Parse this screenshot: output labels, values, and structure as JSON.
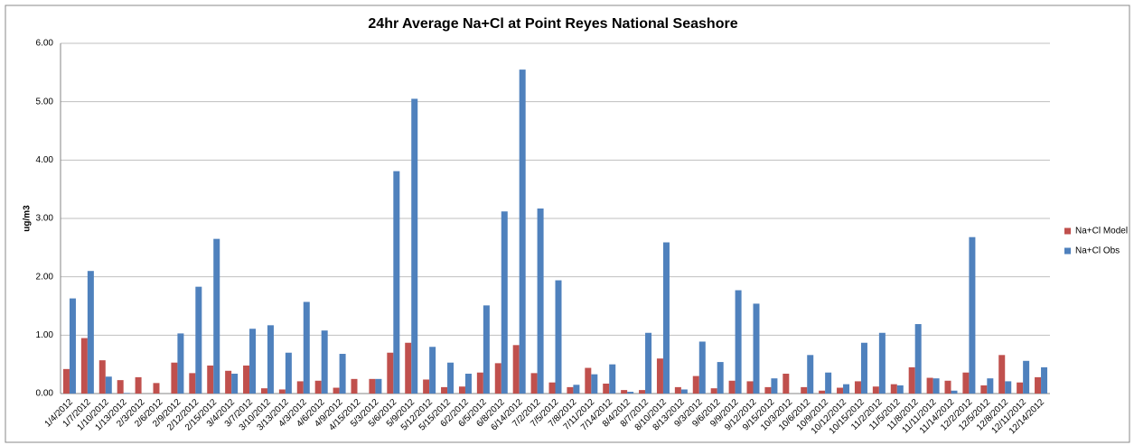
{
  "chart_data": {
    "type": "bar",
    "title": "24hr Average Na+Cl at Point Reyes National Seashore",
    "y_label": "ug/m3",
    "categories": [
      "1/4/2012",
      "1/7/2012",
      "1/10/2012",
      "1/13/2012",
      "2/3/2012",
      "2/6/2012",
      "2/9/2012",
      "2/12/2012",
      "2/15/2012",
      "3/4/2012",
      "3/7/2012",
      "3/10/2012",
      "3/13/2012",
      "4/3/2012",
      "4/6/2012",
      "4/9/2012",
      "4/15/2012",
      "5/3/2012",
      "5/6/2012",
      "5/9/2012",
      "5/12/2012",
      "5/15/2012",
      "6/2/2012",
      "6/5/2012",
      "6/8/2012",
      "6/14/2012",
      "7/2/2012",
      "7/5/2012",
      "7/8/2012",
      "7/11/2012",
      "7/14/2012",
      "8/4/2012",
      "8/7/2012",
      "8/10/2012",
      "8/13/2012",
      "9/3/2012",
      "9/6/2012",
      "9/9/2012",
      "9/12/2012",
      "9/15/2012",
      "10/3/2012",
      "10/6/2012",
      "10/9/2012",
      "10/12/2012",
      "10/15/2012",
      "11/2/2012",
      "11/5/2012",
      "11/8/2012",
      "11/11/2012",
      "11/14/2012",
      "12/2/2012",
      "12/5/2012",
      "12/8/2012",
      "12/11/2012",
      "12/14/2012"
    ],
    "series": [
      {
        "name": "Na+Cl Model",
        "color": "#c0504d",
        "values": [
          0.42,
          0.95,
          0.57,
          0.23,
          0.28,
          0.18,
          0.53,
          0.35,
          0.48,
          0.39,
          0.48,
          0.09,
          0.07,
          0.21,
          0.22,
          0.1,
          0.25,
          0.25,
          0.7,
          0.87,
          0.24,
          0.11,
          0.12,
          0.36,
          0.52,
          0.83,
          0.35,
          0.19,
          0.11,
          0.44,
          0.17,
          0.06,
          0.06,
          0.6,
          0.11,
          0.3,
          0.09,
          0.22,
          0.21,
          0.11,
          0.34,
          0.11,
          0.05,
          0.1,
          0.21,
          0.12,
          0.16,
          0.45,
          0.27,
          0.22,
          0.36,
          0.14,
          0.66,
          0.19,
          0.28
        ]
      },
      {
        "name": "Na+Cl Obs",
        "color": "#4f81bd",
        "values": [
          1.63,
          2.1,
          0.29,
          0.01,
          0,
          0,
          1.03,
          1.83,
          2.65,
          0.34,
          1.11,
          1.17,
          0.7,
          1.57,
          1.08,
          0.68,
          0,
          0.25,
          3.81,
          5.05,
          0.8,
          0.53,
          0.34,
          1.51,
          3.12,
          5.55,
          3.17,
          1.94,
          0.15,
          0.33,
          0.5,
          0.03,
          1.04,
          2.59,
          0.07,
          0.89,
          0.54,
          1.77,
          1.54,
          0.26,
          0,
          0.66,
          0.36,
          0.16,
          0.87,
          1.04,
          0.14,
          1.19,
          0.26,
          0.05,
          2.68,
          0.26,
          0.21,
          0.56,
          0.45
        ]
      }
    ],
    "ylim": [
      0,
      6
    ],
    "yticks": [
      {
        "value": 0,
        "label": "0.00"
      },
      {
        "value": 1,
        "label": "1.00"
      },
      {
        "value": 2,
        "label": "2.00"
      },
      {
        "value": 3,
        "label": "3.00"
      },
      {
        "value": 4,
        "label": "4.00"
      },
      {
        "value": 5,
        "label": "5.00"
      },
      {
        "value": 6,
        "label": "6.00"
      }
    ],
    "grid": true,
    "legend": "right"
  }
}
